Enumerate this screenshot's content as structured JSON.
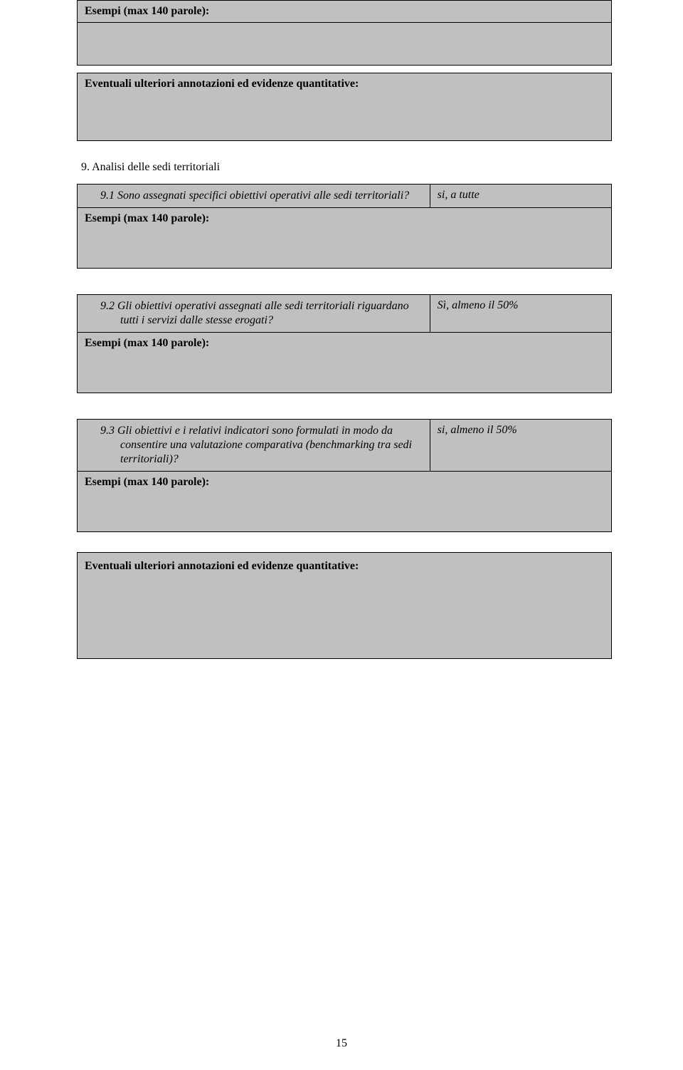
{
  "colors": {
    "cell_bg": "#c0c0c0",
    "border": "#000000",
    "text": "#000000",
    "page_bg": "#ffffff"
  },
  "typography": {
    "font_family": "Times New Roman",
    "body_size_pt": 12,
    "bold_labels": true,
    "italic_questions": true
  },
  "labels": {
    "esempi": "Esempi (max 140 parole):",
    "annotations": "Eventuali ulteriori annotazioni ed evidenze quantitative:"
  },
  "section9": {
    "title": "9. Analisi delle sedi territoriali",
    "q1": {
      "text": "9.1 Sono assegnati specifici obiettivi operativi alle sedi territoriali?",
      "answer": "si, a tutte"
    },
    "q2": {
      "text": "9.2 Gli obiettivi operativi assegnati alle sedi territoriali riguardano tutti i servizi dalle stesse erogati?",
      "answer": "Sì, almeno il 50%"
    },
    "q3": {
      "text": "9.3 Gli obiettivi e i relativi indicatori sono formulati in modo da consentire una valutazione comparativa (benchmarking tra sedi territoriali)?",
      "answer": "si, almeno il 50%"
    }
  },
  "page_number": "15"
}
